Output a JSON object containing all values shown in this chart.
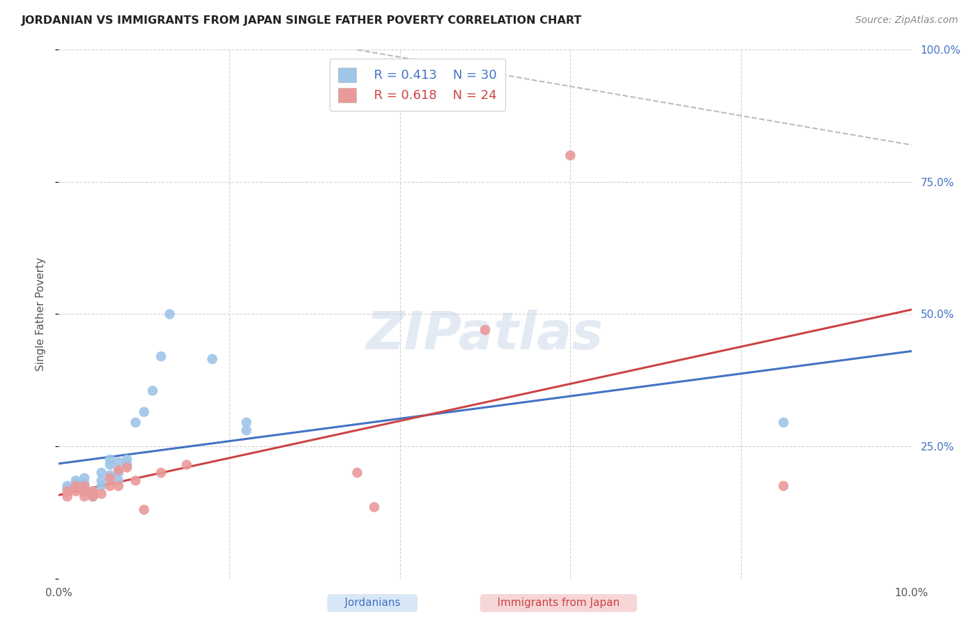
{
  "title": "JORDANIAN VS IMMIGRANTS FROM JAPAN SINGLE FATHER POVERTY CORRELATION CHART",
  "source": "Source: ZipAtlas.com",
  "ylabel": "Single Father Poverty",
  "xlim": [
    0.0,
    0.1
  ],
  "ylim": [
    0.0,
    1.0
  ],
  "legend_R1": "R = 0.413",
  "legend_N1": "N = 30",
  "legend_R2": "R = 0.618",
  "legend_N2": "N = 24",
  "color_blue": "#9fc5e8",
  "color_pink": "#ea9999",
  "color_blue_line": "#4472c4",
  "color_pink_line": "#cc4444",
  "color_blue_text": "#4472c4",
  "color_pink_text": "#cc4444",
  "color_dashed": "#aaaaaa",
  "watermark": "ZIPatlas",
  "jordanians_x": [
    0.001,
    0.001,
    0.002,
    0.002,
    0.003,
    0.003,
    0.003,
    0.003,
    0.004,
    0.004,
    0.005,
    0.005,
    0.005,
    0.006,
    0.006,
    0.006,
    0.007,
    0.007,
    0.007,
    0.008,
    0.008,
    0.009,
    0.01,
    0.011,
    0.012,
    0.013,
    0.018,
    0.022,
    0.022,
    0.085
  ],
  "jordanians_y": [
    0.17,
    0.175,
    0.18,
    0.185,
    0.165,
    0.175,
    0.18,
    0.19,
    0.155,
    0.165,
    0.175,
    0.185,
    0.2,
    0.195,
    0.215,
    0.225,
    0.185,
    0.2,
    0.22,
    0.215,
    0.225,
    0.295,
    0.315,
    0.355,
    0.42,
    0.5,
    0.415,
    0.28,
    0.295,
    0.295
  ],
  "japan_x": [
    0.001,
    0.001,
    0.002,
    0.002,
    0.003,
    0.003,
    0.003,
    0.004,
    0.004,
    0.005,
    0.006,
    0.006,
    0.007,
    0.007,
    0.008,
    0.009,
    0.01,
    0.012,
    0.015,
    0.035,
    0.037,
    0.05,
    0.06,
    0.085
  ],
  "japan_y": [
    0.155,
    0.165,
    0.165,
    0.175,
    0.155,
    0.165,
    0.175,
    0.155,
    0.165,
    0.16,
    0.175,
    0.19,
    0.175,
    0.205,
    0.21,
    0.185,
    0.13,
    0.2,
    0.215,
    0.2,
    0.135,
    0.47,
    0.8,
    0.175
  ]
}
